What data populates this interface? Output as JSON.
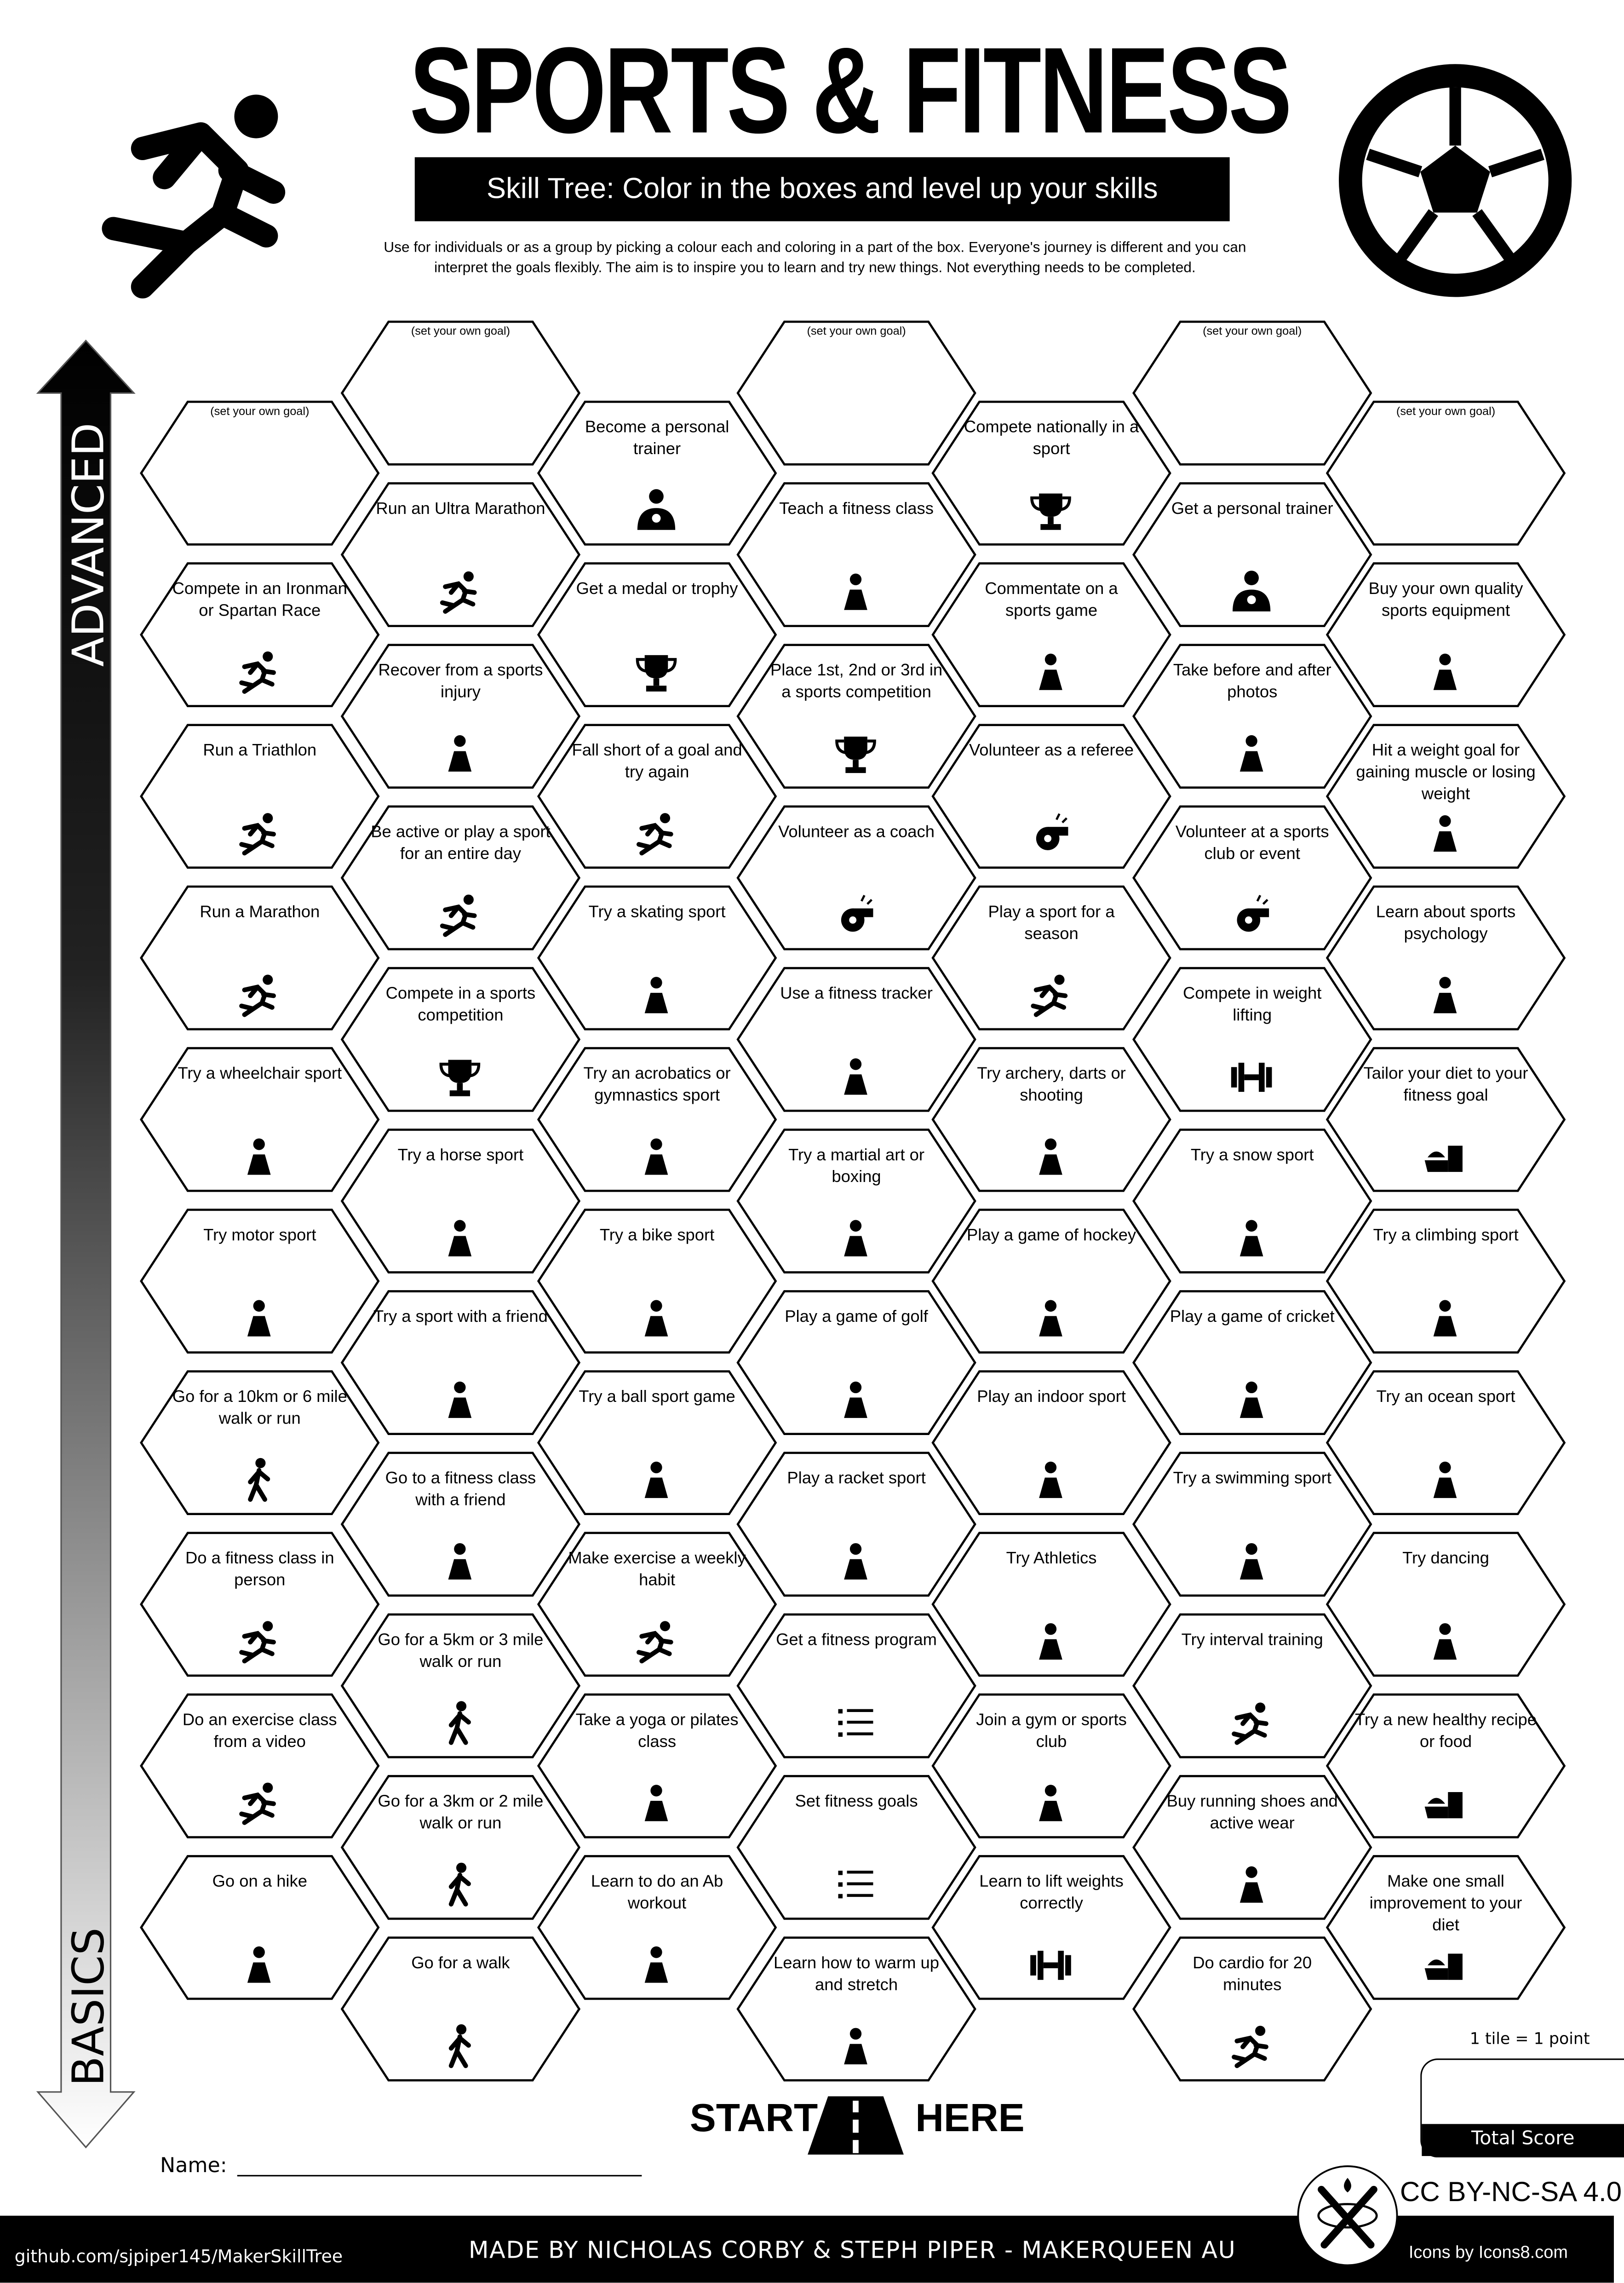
{
  "header": {
    "title": "SPORTS & FITNESS",
    "subtitle": "Skill Tree:  Color in the boxes and level up your skills",
    "description_line1": "Use for individuals or as a group by picking a colour each and coloring in a part of the box.  Everyone's journey is different and you can",
    "description_line2": "interpret the goals flexibly.  The aim is to inspire you to learn and try new things. Not everything needs to be completed."
  },
  "axis": {
    "top_label": "ADVANCED",
    "bottom_label": "BASICS"
  },
  "columns": [
    {
      "tiles": [
        {
          "label": "(set your own goal)",
          "icon": "none",
          "custom": true
        },
        {
          "label": "Compete in an Ironman or Spartan Race",
          "icon": "runner-icon"
        },
        {
          "label": "Run a Triathlon",
          "icon": "runner-icon"
        },
        {
          "label": "Run a Marathon",
          "icon": "runner-icon"
        },
        {
          "label": "Try a wheelchair sport",
          "icon": "wheelchair-icon"
        },
        {
          "label": "Try motor sport",
          "icon": "motorbike-icon"
        },
        {
          "label": "Go for a 10km or 6 mile walk or run",
          "icon": "walker-icon"
        },
        {
          "label": "Do a fitness class in person",
          "icon": "runner-icon"
        },
        {
          "label": "Do an exercise class from a video",
          "icon": "runner-icon"
        },
        {
          "label": "Go on a hike",
          "icon": "hiker-icon"
        }
      ]
    },
    {
      "tiles": [
        {
          "label": "(set your own goal)",
          "icon": "none",
          "custom": true
        },
        {
          "label": "Run an Ultra Marathon",
          "icon": "runner-icon"
        },
        {
          "label": "Recover from a sports injury",
          "icon": "injured-person-icon"
        },
        {
          "label": "Be active or play a sport for an entire day",
          "icon": "runner-icon"
        },
        {
          "label": "Compete in a sports competition",
          "icon": "trophy-icon"
        },
        {
          "label": "Try a horse sport",
          "icon": "horse-icon"
        },
        {
          "label": "Try a sport with a friend",
          "icon": "two-walkers-icon"
        },
        {
          "label": "Go to a fitness class with a friend",
          "icon": "two-walkers-icon"
        },
        {
          "label": "Go for a 5km or 3 mile walk or run",
          "icon": "walker-icon"
        },
        {
          "label": "Go for a 3km or 2 mile walk or run",
          "icon": "walker-icon"
        },
        {
          "label": "Go for a walk",
          "icon": "walker-icon"
        }
      ]
    },
    {
      "tiles": [
        {
          "label": "Become a personal trainer",
          "icon": "trainer-icon"
        },
        {
          "label": "Get a medal or trophy",
          "icon": "trophy-icon"
        },
        {
          "label": "Fall short of a goal and try again",
          "icon": "runner-icon"
        },
        {
          "label": "Try a skating sport",
          "icon": "skate-icon"
        },
        {
          "label": "Try an acrobatics or gymnastics sport",
          "icon": "gymnast-icon"
        },
        {
          "label": "Try a bike sport",
          "icon": "bicycle-icon"
        },
        {
          "label": "Try a ball sport game",
          "icon": "soccer-ball-icon"
        },
        {
          "label": "Make exercise a weekly habit",
          "icon": "runner-icon"
        },
        {
          "label": "Take a yoga or pilates class",
          "icon": "yoga-icon"
        },
        {
          "label": "Learn to do an Ab workout",
          "icon": "situp-icon"
        }
      ]
    },
    {
      "tiles": [
        {
          "label": "(set your own goal)",
          "icon": "none",
          "custom": true
        },
        {
          "label": "Teach a fitness class",
          "icon": "teacher-board-icon"
        },
        {
          "label": "Place 1st, 2nd or 3rd in a sports competition",
          "icon": "trophy-icon"
        },
        {
          "label": "Volunteer as a coach",
          "icon": "whistle-icon"
        },
        {
          "label": "Use a fitness tracker",
          "icon": "smartwatch-icon"
        },
        {
          "label": "Try a martial art or boxing",
          "icon": "karate-icon"
        },
        {
          "label": "Play a game of golf",
          "icon": "golf-ball-icon"
        },
        {
          "label": "Play a racket sport",
          "icon": "racket-icon"
        },
        {
          "label": "Get a fitness program",
          "icon": "list-icon"
        },
        {
          "label": "Set fitness goals",
          "icon": "list-icon"
        },
        {
          "label": "Learn how to warm up and stretch",
          "icon": "stretch-icon"
        }
      ]
    },
    {
      "tiles": [
        {
          "label": "Compete nationally in a sport",
          "icon": "trophy-icon"
        },
        {
          "label": "Commentate on a sports game",
          "icon": "microphone-icon"
        },
        {
          "label": "Volunteer as a referee",
          "icon": "whistle-icon"
        },
        {
          "label": "Play a sport for a season",
          "icon": "runner-icon"
        },
        {
          "label": "Try archery, darts or shooting",
          "icon": "target-icon"
        },
        {
          "label": "Play a game of hockey",
          "icon": "hockey-icon"
        },
        {
          "label": "Play an indoor sport",
          "icon": "shuttlecock-icon"
        },
        {
          "label": "Try Athletics",
          "icon": "shot-put-icon"
        },
        {
          "label": "Join a gym or sports club",
          "icon": "card-icon"
        },
        {
          "label": "Learn to lift weights correctly",
          "icon": "dumbbell-icon"
        }
      ]
    },
    {
      "tiles": [
        {
          "label": "(set your own goal)",
          "icon": "none",
          "custom": true
        },
        {
          "label": "Get a personal trainer",
          "icon": "trainer-icon"
        },
        {
          "label": "Take before and after photos",
          "icon": "camera-icon"
        },
        {
          "label": "Volunteer at a sports club or event",
          "icon": "whistle-icon"
        },
        {
          "label": "Compete in weight lifting",
          "icon": "dumbbell-icon"
        },
        {
          "label": "Try a snow sport",
          "icon": "snowboard-icon"
        },
        {
          "label": "Play a game of cricket",
          "icon": "cricket-bat-icon"
        },
        {
          "label": "Try a swimming sport",
          "icon": "swimmer-icon"
        },
        {
          "label": "Try interval training",
          "icon": "runner-icon"
        },
        {
          "label": "Buy running shoes and active wear",
          "icon": "sneaker-icon"
        },
        {
          "label": "Do cardio for 20 minutes",
          "icon": "runner-icon"
        }
      ]
    },
    {
      "tiles": [
        {
          "label": "(set your own goal)",
          "icon": "none",
          "custom": true
        },
        {
          "label": "Buy your own quality sports equipment",
          "icon": "cricket-bat-icon"
        },
        {
          "label": "Hit a weight goal for gaining muscle or losing weight",
          "icon": "scale-icon"
        },
        {
          "label": "Learn about sports psychology",
          "icon": "head-brain-icon"
        },
        {
          "label": "Tailor your diet to your fitness goal",
          "icon": "food-icon"
        },
        {
          "label": "Try a climbing sport",
          "icon": "climber-icon"
        },
        {
          "label": "Try an ocean sport",
          "icon": "surfer-icon"
        },
        {
          "label": "Try dancing",
          "icon": "dancer-icon"
        },
        {
          "label": "Try a new healthy recipe or food",
          "icon": "food-icon"
        },
        {
          "label": "Make one small improvement to your diet",
          "icon": "food-icon"
        }
      ]
    }
  ],
  "footer": {
    "start": "START",
    "here": "HERE",
    "name_label": "Name:",
    "points_note": "1 tile = 1 point",
    "total_score": "Total Score",
    "license": "CC BY-NC-SA 4.0",
    "github": "github.com/sjpiper145/MakerSkillTree",
    "made_by": "MADE BY NICHOLAS CORBY & STEPH PIPER  -  MAKERQUEEN AU",
    "icons_credit": "Icons by Icons8.com"
  }
}
